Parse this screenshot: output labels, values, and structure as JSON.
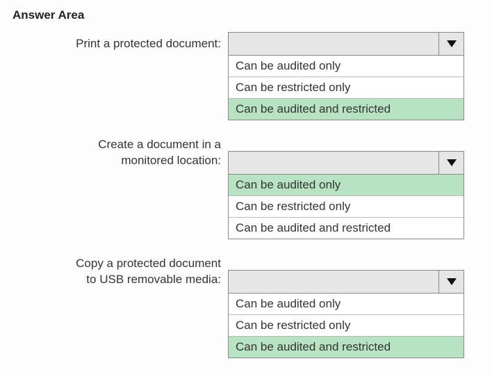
{
  "title": "Answer Area",
  "highlight_color": "#b7e3c2",
  "option_bg": "#ffffff",
  "header_bg": "#e6e6e6",
  "border_color": "#888888",
  "text_color": "#333333",
  "questions": [
    {
      "label_line1": "Print a protected document:",
      "label_line2": "",
      "options": [
        {
          "text": "Can be audited only",
          "selected": false
        },
        {
          "text": "Can be restricted only",
          "selected": false
        },
        {
          "text": "Can be audited and restricted",
          "selected": true
        }
      ]
    },
    {
      "label_line1": "Create a document in a",
      "label_line2": "monitored location:",
      "options": [
        {
          "text": "Can be audited only",
          "selected": true
        },
        {
          "text": "Can be restricted only",
          "selected": false
        },
        {
          "text": "Can be audited and restricted",
          "selected": false
        }
      ]
    },
    {
      "label_line1": "Copy a protected document",
      "label_line2": "to USB removable media:",
      "options": [
        {
          "text": "Can be audited only",
          "selected": false
        },
        {
          "text": "Can be restricted only",
          "selected": false
        },
        {
          "text": "Can be audited and restricted",
          "selected": true
        }
      ]
    }
  ]
}
